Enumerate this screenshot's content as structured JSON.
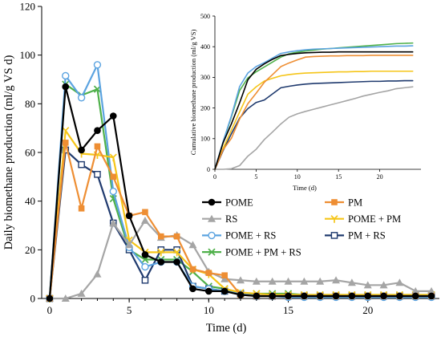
{
  "chart_data": [
    {
      "type": "line",
      "xlabel": "Time (d)",
      "ylabel": "Daily biomethane production (ml/g VS d)",
      "xlim": [
        -0.5,
        24.5
      ],
      "ylim": [
        0,
        120
      ],
      "xticks": [
        0,
        5,
        10,
        15,
        20
      ],
      "yticks": [
        0,
        20,
        40,
        60,
        80,
        100,
        120
      ],
      "grid": false,
      "legend_position": "bottom-center",
      "x": [
        0,
        1,
        2,
        3,
        4,
        5,
        6,
        7,
        8,
        9,
        10,
        11,
        12,
        13,
        14,
        15,
        16,
        17,
        18,
        19,
        20,
        21,
        22,
        23,
        24
      ],
      "series": [
        {
          "name": "POME",
          "color": "#000000",
          "marker": "filled-circle",
          "values": [
            0,
            87,
            61,
            69,
            75,
            34,
            18,
            15,
            15,
            4,
            3,
            3,
            1.5,
            1,
            1,
            1,
            1,
            1,
            1,
            1,
            1,
            1,
            1,
            1,
            1
          ]
        },
        {
          "name": "PM",
          "color": "#EE8E33",
          "marker": "filled-square",
          "values": [
            0,
            64,
            37,
            62.5,
            50,
            34,
            35.5,
            25.5,
            25.5,
            12,
            10.5,
            9.5,
            1.5,
            1,
            1,
            1,
            1,
            1,
            1,
            1,
            1,
            1,
            1,
            1,
            1
          ]
        },
        {
          "name": "RS",
          "color": "#A5A5A5",
          "marker": "filled-triangle",
          "values": [
            0,
            0,
            2,
            10,
            31,
            22,
            32,
            25,
            26,
            22,
            11,
            8,
            7.5,
            7,
            7,
            7,
            7,
            7,
            7.5,
            6.5,
            5.5,
            5.5,
            6.5,
            3,
            3
          ]
        },
        {
          "name": "POME + PM",
          "color": "#F5C518",
          "marker": "y-mark",
          "values": [
            0,
            69,
            59.5,
            59,
            58,
            24,
            19,
            19,
            19,
            12,
            10,
            4,
            2.5,
            2,
            1.5,
            1.5,
            1.5,
            1.5,
            1.5,
            1.5,
            1.5,
            1.5,
            1.5,
            1.5,
            1.5
          ]
        },
        {
          "name": "POME + RS",
          "color": "#5BA3E0",
          "marker": "open-circle",
          "values": [
            0,
            91.5,
            82.5,
            96,
            44,
            21,
            13,
            15,
            15,
            5,
            4,
            3,
            2,
            1,
            1,
            0.5,
            0.5,
            0.5,
            0.5,
            0.5,
            0.5,
            0.5,
            0.5,
            0.5,
            0.5
          ]
        },
        {
          "name": "PM + RS",
          "color": "#1F3A6E",
          "marker": "open-square",
          "values": [
            0,
            61,
            55,
            51,
            31,
            20,
            7.5,
            20,
            20,
            5,
            4,
            3,
            2,
            1,
            1,
            1,
            1,
            1,
            1,
            1,
            1,
            1,
            1,
            1,
            1
          ]
        },
        {
          "name": "POME + PM + RS",
          "color": "#4FB04A",
          "marker": "x-mark",
          "values": [
            0,
            88,
            83.5,
            86,
            41,
            20,
            16,
            16,
            16,
            11,
            5,
            4,
            2,
            2,
            2,
            2,
            1.5,
            1.5,
            1.5,
            1.5,
            1.5,
            1.5,
            1.5,
            1.5,
            1.5
          ]
        }
      ]
    },
    {
      "type": "line",
      "position": "top-right inset",
      "xlabel": "Time (d)",
      "ylabel": "Cumulative biomethane production (ml/g VS)",
      "xlim": [
        0,
        25
      ],
      "ylim": [
        0,
        500
      ],
      "xticks": [
        0,
        5,
        10,
        15,
        20
      ],
      "yticks": [
        0,
        100,
        200,
        300,
        400,
        500
      ],
      "grid": false,
      "x": [
        0,
        1,
        2,
        3,
        4,
        5,
        6,
        7,
        8,
        9,
        10,
        11,
        12,
        13,
        14,
        15,
        16,
        17,
        18,
        19,
        20,
        21,
        22,
        23,
        24
      ],
      "series": [
        {
          "name": "POME",
          "color": "#000000",
          "marker": "none",
          "values": [
            0,
            87,
            148,
            217,
            292,
            326,
            344,
            359,
            371,
            375,
            378,
            380,
            381,
            382,
            382,
            383,
            383,
            383,
            383,
            383,
            383,
            383,
            383,
            383,
            383
          ]
        },
        {
          "name": "PM",
          "color": "#EE8E33",
          "marker": "none",
          "values": [
            0,
            64,
            101,
            164,
            214,
            248,
            284,
            309,
            335,
            347,
            357,
            366,
            368,
            369,
            370,
            370,
            371,
            371,
            371,
            372,
            372,
            372,
            372,
            372,
            372
          ]
        },
        {
          "name": "RS",
          "color": "#A5A5A5",
          "marker": "none",
          "values": [
            0,
            0,
            2,
            12,
            43,
            65,
            97,
            122,
            148,
            170,
            181,
            189,
            196,
            203,
            210,
            217,
            224,
            231,
            239,
            245,
            251,
            256,
            263,
            266,
            269
          ]
        },
        {
          "name": "POME + PM",
          "color": "#F5C518",
          "marker": "none",
          "values": [
            0,
            69,
            128,
            187,
            245,
            269,
            288,
            297,
            305,
            309,
            312,
            314,
            315,
            316,
            317,
            318,
            318,
            319,
            319,
            320,
            320,
            320,
            320,
            320,
            320
          ]
        },
        {
          "name": "POME + RS",
          "color": "#5BA3E0",
          "marker": "none",
          "values": [
            0,
            91,
            174,
            270,
            314,
            335,
            348,
            363,
            378,
            383,
            387,
            390,
            392,
            393,
            394,
            395,
            396,
            397,
            398,
            399,
            400,
            401,
            402,
            402,
            403
          ]
        },
        {
          "name": "PM + RS",
          "color": "#1F3A6E",
          "marker": "none",
          "values": [
            0,
            61,
            116,
            167,
            198,
            218,
            226,
            246,
            266,
            271,
            275,
            278,
            280,
            281,
            282,
            283,
            284,
            285,
            286,
            287,
            287,
            288,
            288,
            289,
            289
          ]
        },
        {
          "name": "POME + PM + RS",
          "color": "#4FB04A",
          "marker": "none",
          "values": [
            0,
            88,
            171,
            257,
            298,
            318,
            334,
            350,
            366,
            377,
            382,
            386,
            389,
            392,
            394,
            396,
            398,
            400,
            402,
            404,
            406,
            408,
            410,
            411,
            412
          ]
        }
      ]
    }
  ]
}
